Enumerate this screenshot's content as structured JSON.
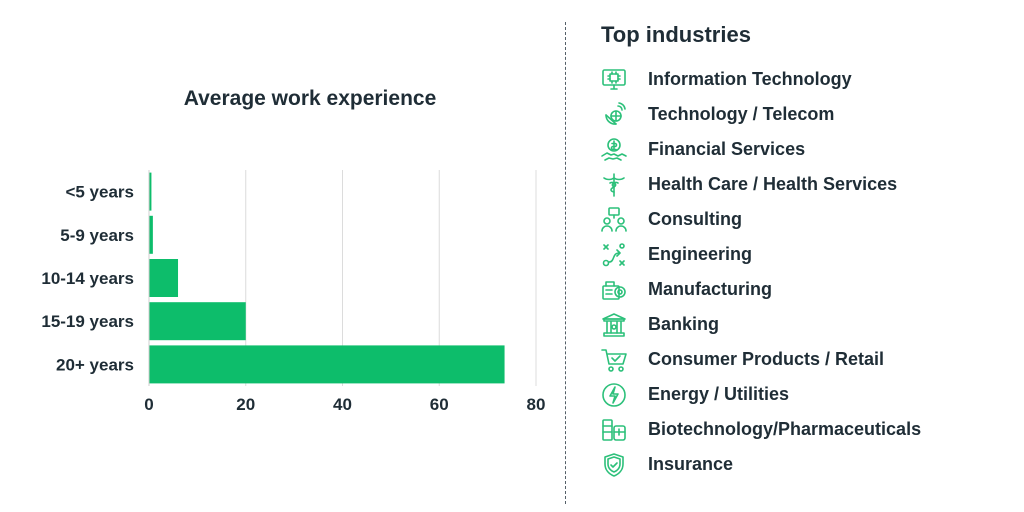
{
  "colors": {
    "bar": "#0dbd6b",
    "icon": "#2cc07a",
    "text": "#1f2d36",
    "grid": "#dcdcdc"
  },
  "chart_data": {
    "type": "bar",
    "orientation": "horizontal",
    "title": "Average work experience",
    "categories": [
      "<5 years",
      "5-9 years",
      "10-14 years",
      "15-19 years",
      "20+ years"
    ],
    "values": [
      0.5,
      0.8,
      6,
      20,
      73.5
    ],
    "xlim": [
      0,
      80
    ],
    "xticks": [
      0,
      20,
      40,
      60,
      80
    ],
    "grid": true,
    "xlabel": "",
    "ylabel": ""
  },
  "industries": {
    "title": "Top industries",
    "items": [
      {
        "label": "Information Technology",
        "icon": "computer-chip-icon"
      },
      {
        "label": "Technology / Telecom",
        "icon": "satellite-dish-icon"
      },
      {
        "label": "Financial Services",
        "icon": "money-handshake-icon"
      },
      {
        "label": "Health Care / Health Services",
        "icon": "caduceus-icon"
      },
      {
        "label": "Consulting",
        "icon": "people-meeting-icon"
      },
      {
        "label": "Engineering",
        "icon": "strategy-plan-icon"
      },
      {
        "label": "Manufacturing",
        "icon": "machine-gear-icon"
      },
      {
        "label": "Banking",
        "icon": "bank-building-icon"
      },
      {
        "label": "Consumer Products / Retail",
        "icon": "shopping-cart-icon"
      },
      {
        "label": "Energy / Utilities",
        "icon": "lightning-bolt-icon"
      },
      {
        "label": "Biotechnology/Pharmaceuticals",
        "icon": "lab-pills-icon"
      },
      {
        "label": "Insurance",
        "icon": "shield-check-icon"
      }
    ]
  }
}
